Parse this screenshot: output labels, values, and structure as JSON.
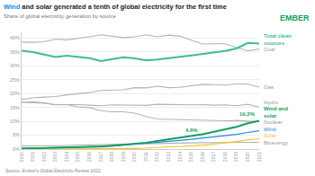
{
  "chart_data": {
    "type": "line",
    "title": "Wind and solar generated a tenth of global electricity for the first time",
    "subtitle": "Share of global electricity generation by source",
    "logo": "EMBER",
    "source": "Source: Ember's Global Electricity Review 2022.",
    "x": [
      2000,
      2001,
      2002,
      2003,
      2004,
      2005,
      2006,
      2007,
      2008,
      2009,
      2010,
      2011,
      2012,
      2013,
      2014,
      2015,
      2016,
      2017,
      2018,
      2019,
      2020,
      2021
    ],
    "series": [
      {
        "name": "Coal",
        "color": "#b3b3b3",
        "line_style": "solid",
        "values": [
          38.5,
          38.4,
          38.6,
          39.6,
          39.3,
          39.8,
          40.4,
          41.1,
          40.6,
          40.1,
          40.4,
          41.1,
          40.4,
          41.0,
          40.6,
          39.2,
          37.8,
          37.9,
          37.9,
          36.5,
          35.4,
          36.0
        ]
      },
      {
        "name": "Gas",
        "color": "#b3b3b3",
        "line_style": "solid",
        "values": [
          17.8,
          18.4,
          18.7,
          18.9,
          19.5,
          19.8,
          20.3,
          21.1,
          21.3,
          21.3,
          22.1,
          22.0,
          22.6,
          22.1,
          22.2,
          22.8,
          23.3,
          23.2,
          23.0,
          23.4,
          23.4,
          22.2
        ]
      },
      {
        "name": "Hydro",
        "color": "#b3b3b3",
        "line_style": "solid",
        "values": [
          16.9,
          16.8,
          16.5,
          16.0,
          16.1,
          16.0,
          15.8,
          15.6,
          15.9,
          15.9,
          15.9,
          15.7,
          16.1,
          16.0,
          16.0,
          15.9,
          16.0,
          15.8,
          15.9,
          15.6,
          16.1,
          15.1
        ]
      },
      {
        "name": "Nuclear",
        "color": "#b3b3b3",
        "line_style": "solid",
        "values": [
          16.8,
          17.0,
          16.6,
          15.9,
          16.0,
          15.2,
          14.9,
          13.8,
          13.4,
          13.4,
          12.9,
          11.7,
          10.8,
          10.6,
          10.6,
          10.5,
          10.4,
          10.2,
          10.2,
          10.3,
          10.1,
          9.8
        ]
      },
      {
        "name": "Bioenergy",
        "color": "#b3b3b3",
        "line_style": "solid",
        "values": [
          1.1,
          1.1,
          1.2,
          1.3,
          1.3,
          1.4,
          1.5,
          1.5,
          1.6,
          1.7,
          1.8,
          1.9,
          2.0,
          2.1,
          2.2,
          2.2,
          2.3,
          2.3,
          2.4,
          2.4,
          2.4,
          2.4
        ]
      },
      {
        "name": "Solar",
        "color": "#f2c318",
        "line_style": "solid",
        "values": [
          0,
          0,
          0,
          0,
          0,
          0,
          0,
          0,
          0.1,
          0.1,
          0.2,
          0.3,
          0.6,
          0.8,
          0.9,
          1.1,
          1.4,
          1.8,
          2.2,
          2.7,
          3.3,
          3.7
        ]
      },
      {
        "name": "Wind",
        "color": "#1e88e5",
        "line_style": "solid",
        "values": [
          0.2,
          0.3,
          0.3,
          0.4,
          0.5,
          0.6,
          0.7,
          0.9,
          1.1,
          1.4,
          1.7,
          2.0,
          2.3,
          2.7,
          3.1,
          3.5,
          3.9,
          4.4,
          4.8,
          5.3,
          6.0,
          6.6
        ]
      },
      {
        "name": "Total clean sources",
        "color": "#3dbf8a",
        "line_style": "thick",
        "values": [
          35.4,
          34.9,
          34.0,
          33.1,
          33.6,
          33.1,
          32.7,
          31.7,
          32.4,
          33.0,
          32.6,
          31.9,
          32.2,
          32.6,
          33.2,
          33.7,
          34.3,
          34.7,
          35.3,
          36.2,
          38.2,
          38.0
        ]
      },
      {
        "name": "Wind and solar",
        "color": "#13a05a",
        "line_style": "thick",
        "values": [
          0.2,
          0.3,
          0.3,
          0.4,
          0.5,
          0.6,
          0.7,
          0.9,
          1.2,
          1.5,
          1.9,
          2.3,
          2.9,
          3.5,
          4.0,
          4.6,
          5.3,
          6.2,
          7.0,
          8.0,
          9.3,
          10.2
        ]
      }
    ],
    "annotations": [
      {
        "x": 2021,
        "y": 10.2,
        "text": "10.2%"
      },
      {
        "x": 2015,
        "y": 4.6,
        "text": "4.6%"
      }
    ],
    "xlim": [
      2000,
      2021
    ],
    "xticks": [
      2000,
      2001,
      2002,
      2003,
      2004,
      2005,
      2006,
      2007,
      2008,
      2009,
      2010,
      2011,
      2012,
      2013,
      2014,
      2015,
      2016,
      2017,
      2018,
      2019,
      2020,
      2021
    ],
    "ylim": [
      0,
      42
    ],
    "yticks": [
      {
        "value": 0,
        "label": "0%"
      },
      {
        "value": 5,
        "label": "5%"
      },
      {
        "value": 10,
        "label": "10%"
      },
      {
        "value": 15,
        "label": "15%"
      },
      {
        "value": 20,
        "label": "20%"
      },
      {
        "value": 25,
        "label": "25%"
      },
      {
        "value": 30,
        "label": "30%"
      },
      {
        "value": 35,
        "label": "35%"
      },
      {
        "value": 40,
        "label": "40%"
      }
    ],
    "grid": true
  }
}
